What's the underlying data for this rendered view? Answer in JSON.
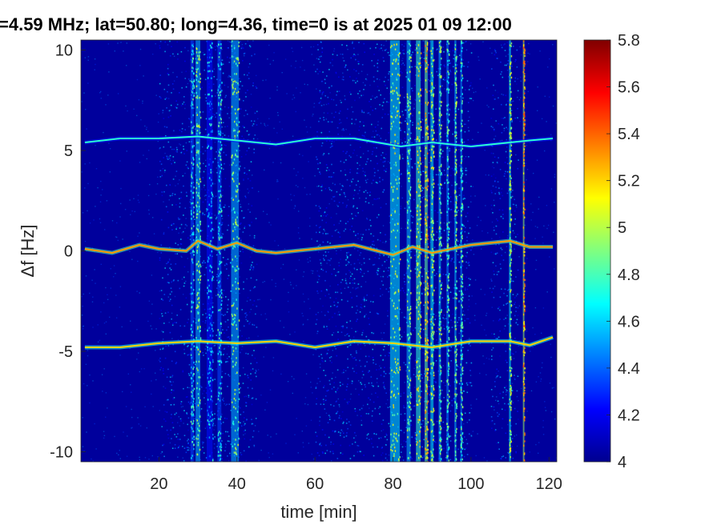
{
  "chart_data": {
    "type": "heatmap",
    "title": "=4.59 MHz;  lat=50.80; long=4.36, time=0 is at 2025 01 09 12:00",
    "xlabel": "time [min]",
    "ylabel": "Δf [Hz]",
    "xlim": [
      0,
      122
    ],
    "ylim": [
      -10.5,
      10.5
    ],
    "x_ticks": [
      {
        "value": 20,
        "label": "20"
      },
      {
        "value": 40,
        "label": "40"
      },
      {
        "value": 60,
        "label": "60"
      },
      {
        "value": 80,
        "label": "80"
      },
      {
        "value": 100,
        "label": "100"
      },
      {
        "value": 120,
        "label": "120"
      }
    ],
    "y_ticks": [
      {
        "value": 10,
        "label": "10"
      },
      {
        "value": 5,
        "label": "5"
      },
      {
        "value": 0,
        "label": "0"
      },
      {
        "value": -5,
        "label": "-5"
      },
      {
        "value": -10,
        "label": "-10"
      }
    ],
    "colorbar": {
      "colormap": "jet",
      "range": [
        4,
        5.8
      ],
      "ticks": [
        {
          "value": 5.8,
          "label": "5.8"
        },
        {
          "value": 5.6,
          "label": "5.6"
        },
        {
          "value": 5.4,
          "label": "5.4"
        },
        {
          "value": 5.2,
          "label": "5.2"
        },
        {
          "value": 5.0,
          "label": "5"
        },
        {
          "value": 4.8,
          "label": "4.8"
        },
        {
          "value": 4.6,
          "label": "4.6"
        },
        {
          "value": 4.4,
          "label": "4.4"
        },
        {
          "value": 4.2,
          "label": "4.2"
        },
        {
          "value": 4.0,
          "label": "4"
        }
      ]
    },
    "background_level": 4.05,
    "traces": [
      {
        "center_hz": 5.5,
        "intensity": 4.75,
        "points": [
          [
            1,
            5.4
          ],
          [
            10,
            5.6
          ],
          [
            20,
            5.6
          ],
          [
            30,
            5.7
          ],
          [
            40,
            5.5
          ],
          [
            50,
            5.3
          ],
          [
            60,
            5.6
          ],
          [
            70,
            5.6
          ],
          [
            82,
            5.2
          ],
          [
            90,
            5.4
          ],
          [
            100,
            5.2
          ],
          [
            110,
            5.4
          ],
          [
            115,
            5.5
          ],
          [
            121,
            5.6
          ]
        ]
      },
      {
        "center_hz": 0.0,
        "intensity": 5.3,
        "points": [
          [
            1,
            0.1
          ],
          [
            8,
            -0.1
          ],
          [
            15,
            0.3
          ],
          [
            20,
            0.1
          ],
          [
            27,
            0.0
          ],
          [
            30,
            0.5
          ],
          [
            35,
            0.1
          ],
          [
            40,
            0.4
          ],
          [
            45,
            0.0
          ],
          [
            50,
            -0.1
          ],
          [
            60,
            0.1
          ],
          [
            70,
            0.3
          ],
          [
            80,
            -0.2
          ],
          [
            85,
            0.2
          ],
          [
            90,
            -0.1
          ],
          [
            100,
            0.3
          ],
          [
            110,
            0.5
          ],
          [
            115,
            0.2
          ],
          [
            121,
            0.2
          ]
        ]
      },
      {
        "center_hz": -4.7,
        "intensity": 5.2,
        "points": [
          [
            1,
            -4.8
          ],
          [
            10,
            -4.8
          ],
          [
            20,
            -4.6
          ],
          [
            30,
            -4.5
          ],
          [
            40,
            -4.6
          ],
          [
            50,
            -4.5
          ],
          [
            60,
            -4.8
          ],
          [
            70,
            -4.5
          ],
          [
            80,
            -4.6
          ],
          [
            90,
            -4.8
          ],
          [
            100,
            -4.5
          ],
          [
            110,
            -4.5
          ],
          [
            115,
            -4.7
          ],
          [
            121,
            -4.3
          ]
        ]
      }
    ],
    "vertical_bands": [
      {
        "time": 28.5,
        "width": 0.8,
        "intensity": 4.7
      },
      {
        "time": 30,
        "width": 1.2,
        "intensity": 4.9
      },
      {
        "time": 33,
        "width": 1.5,
        "intensity": 4.6
      },
      {
        "time": 35.5,
        "width": 1.0,
        "intensity": 4.7
      },
      {
        "time": 39.5,
        "width": 2.0,
        "intensity": 4.9
      },
      {
        "time": 80.5,
        "width": 2.5,
        "intensity": 5.0
      },
      {
        "time": 84,
        "width": 1.0,
        "intensity": 4.9
      },
      {
        "time": 86.5,
        "width": 1.2,
        "intensity": 5.1
      },
      {
        "time": 88.5,
        "width": 0.8,
        "intensity": 5.2
      },
      {
        "time": 90,
        "width": 0.8,
        "intensity": 5.0
      },
      {
        "time": 92,
        "width": 0.6,
        "intensity": 4.9
      },
      {
        "time": 94,
        "width": 0.6,
        "intensity": 4.8
      },
      {
        "time": 96,
        "width": 0.5,
        "intensity": 4.9
      },
      {
        "time": 97.5,
        "width": 0.5,
        "intensity": 4.8
      },
      {
        "time": 110,
        "width": 0.5,
        "intensity": 5.0
      },
      {
        "time": 113.5,
        "width": 0.4,
        "intensity": 5.3
      }
    ],
    "noise_bands": [
      {
        "from": 20,
        "to": 45,
        "intensity": 4.35
      },
      {
        "from": 60,
        "to": 100,
        "intensity": 4.35
      },
      {
        "from": 105,
        "to": 112,
        "intensity": 4.3
      }
    ],
    "grid": false
  }
}
